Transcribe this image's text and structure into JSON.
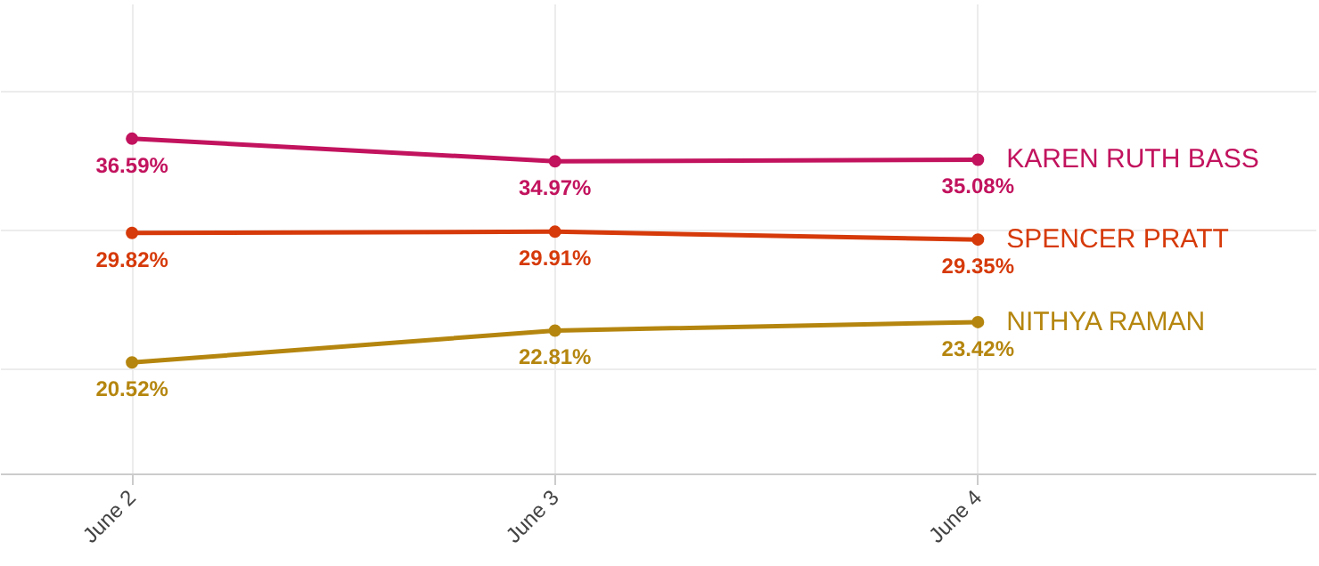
{
  "chart_data": {
    "type": "line",
    "categories": [
      "June 2",
      "June 3",
      "June 4"
    ],
    "series": [
      {
        "name": "KAREN RUTH BASS",
        "color": "#c2135e",
        "values": [
          36.59,
          34.97,
          35.08
        ],
        "value_labels": [
          "36.59%",
          "34.97%",
          "35.08%"
        ]
      },
      {
        "name": "SPENCER PRATT",
        "color": "#d63a0a",
        "values": [
          29.82,
          29.91,
          29.35
        ],
        "value_labels": [
          "29.82%",
          "29.91%",
          "29.35%"
        ]
      },
      {
        "name": "NITHYA RAMAN",
        "color": "#b5860f",
        "values": [
          20.52,
          22.81,
          23.42
        ],
        "value_labels": [
          "20.52%",
          "22.81%",
          "23.42%"
        ]
      }
    ],
    "tick_labels": "x",
    "grid": true,
    "marker": "circle"
  }
}
